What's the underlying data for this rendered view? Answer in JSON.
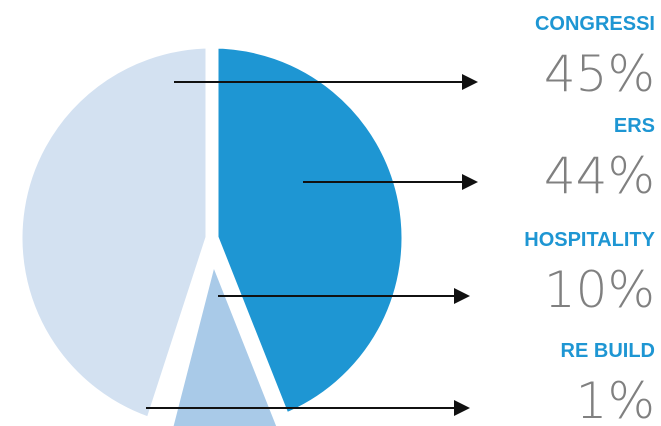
{
  "chart_data": {
    "type": "pie",
    "title": "",
    "slices": [
      {
        "label": "CONGRESSI",
        "percent_label": "45%",
        "value": 45,
        "color": "#d3e1f1"
      },
      {
        "label": "ERS",
        "percent_label": "44%",
        "value": 44,
        "color": "#1e96d3"
      },
      {
        "label": "HOSPITALITY",
        "percent_label": "10%",
        "value": 10,
        "color": "#a9cae8"
      },
      {
        "label": "RE BUILD",
        "percent_label": "1%",
        "value": 1,
        "color": "#d3e1f1"
      }
    ],
    "label_color": "#1e96d3",
    "percent_color": "#808080",
    "arrow_color": "#111111",
    "legend_position": "right"
  }
}
